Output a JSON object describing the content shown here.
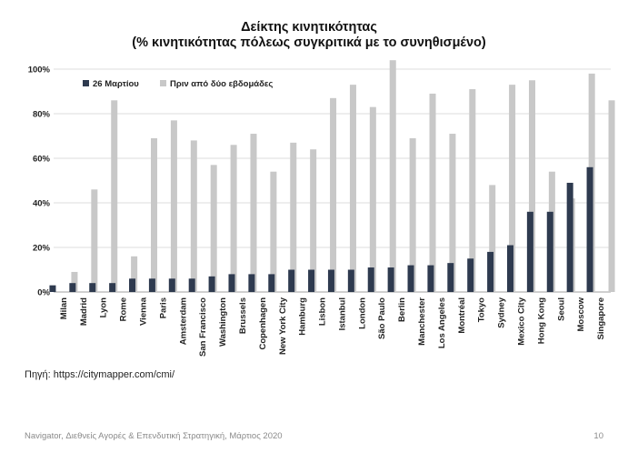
{
  "chart_data": {
    "type": "bar",
    "title": "Δείκτης κινητικότητας",
    "subtitle": "(% κινητικότητας πόλεως συγκριτικά με το συνηθισμένο)",
    "xlabel": "",
    "ylabel": "",
    "ylim": [
      0,
      100
    ],
    "yticks": [
      "0%",
      "20%",
      "40%",
      "60%",
      "80%",
      "100%"
    ],
    "grid": true,
    "legend_position": "top-left",
    "categories": [
      "Milan",
      "Madrid",
      "Lyon",
      "Rome",
      "Vienna",
      "Paris",
      "Amsterdam",
      "San Francisco",
      "Washington",
      "Brussels",
      "Copenhagen",
      "New York City",
      "Hamburg",
      "Lisbon",
      "Istanbul",
      "London",
      "São Paulo",
      "Berlin",
      "Manchester",
      "Los Angeles",
      "Montréal",
      "Tokyo",
      "Sydney",
      "Mexico City",
      "Hong Kong",
      "Seoul",
      "Moscow",
      "Singapore"
    ],
    "series": [
      {
        "name": "26 Μαρτίου",
        "color": "#2e3a4f",
        "values": [
          3,
          4,
          4,
          4,
          6,
          6,
          6,
          6,
          7,
          8,
          8,
          8,
          10,
          10,
          10,
          10,
          11,
          11,
          12,
          12,
          13,
          15,
          18,
          21,
          36,
          36,
          49,
          56
        ]
      },
      {
        "name": "Πριν από δύο εβδομάδες",
        "color": "#c8c8c8",
        "values": [
          9,
          46,
          86,
          16,
          69,
          77,
          68,
          57,
          66,
          71,
          54,
          67,
          64,
          87,
          93,
          83,
          104,
          69,
          89,
          71,
          91,
          48,
          93,
          95,
          54,
          42,
          98,
          86
        ]
      }
    ]
  },
  "source": "Πηγή: https://citymapper.com/cmi/",
  "footer": "Navigator, Διεθνείς Αγορές & Επενδυτική Στρατηγική, Μάρτιος 2020",
  "page_number": "10"
}
